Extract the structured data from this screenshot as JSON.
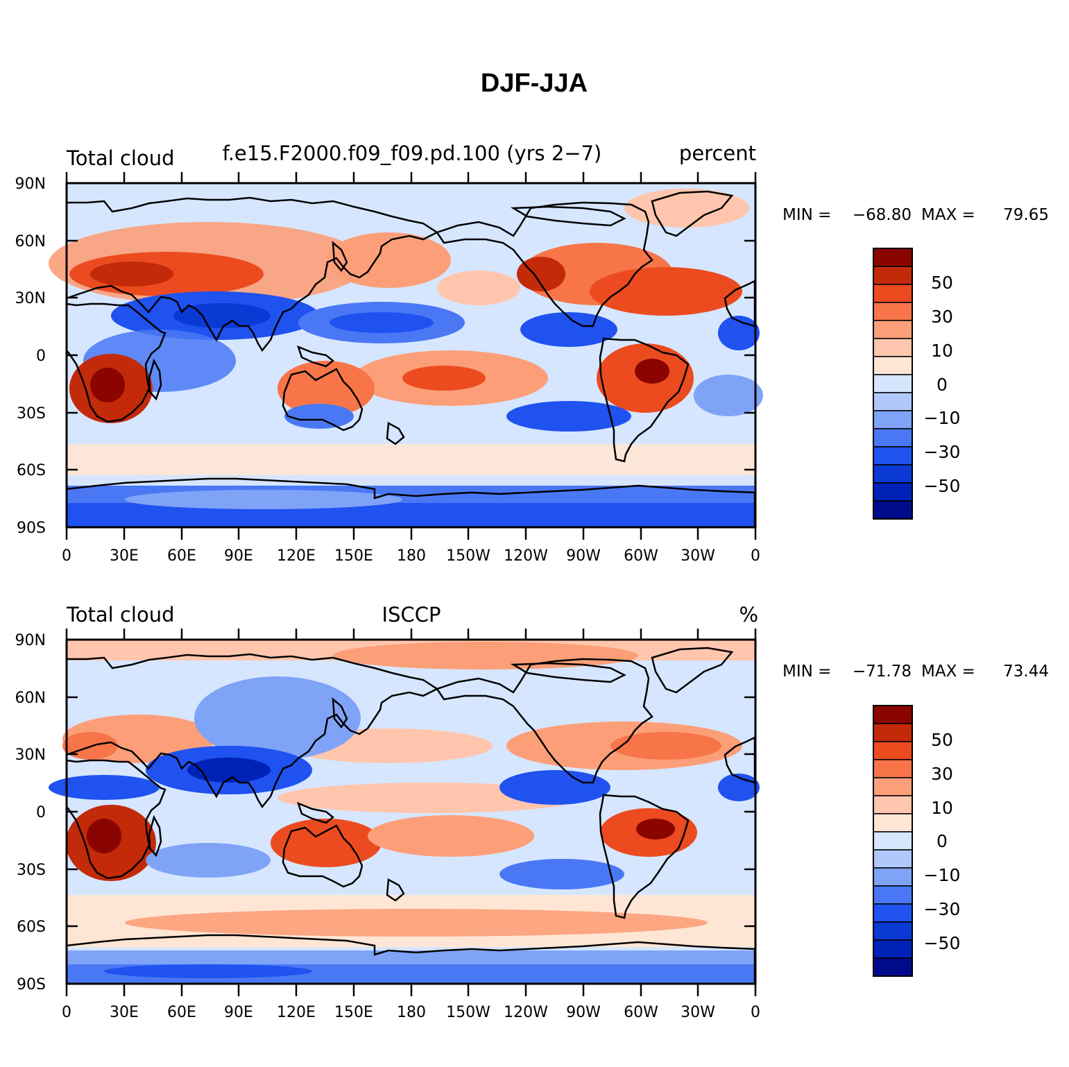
{
  "main_title": "DJF-JJA",
  "colors": {
    "levels_low_to_high": [
      "#000b8c",
      "#0022b6",
      "#0a39d4",
      "#1f52ef",
      "#4a78f5",
      "#7fa3f7",
      "#b0c8fb",
      "#d6e6ff",
      "#ffe6d4",
      "#ffc6ad",
      "#fc9f79",
      "#f77548",
      "#ec4b20",
      "#c22a09",
      "#8a0500"
    ],
    "land_outline": "#000000",
    "background": "#ffffff"
  },
  "panels": [
    {
      "left_label": "Total cloud",
      "center_label": "f.e15.F2000.f09_f09.pd.100 (yrs 2−7)",
      "right_label": "percent",
      "min_label": "MIN =",
      "min_value": "−68.80",
      "max_label": "MAX =",
      "max_value": "79.65"
    },
    {
      "left_label": "Total cloud",
      "center_label": "ISCCP",
      "right_label": "%",
      "min_label": "MIN =",
      "min_value": "−71.78",
      "max_label": "MAX =",
      "max_value": "73.44"
    }
  ],
  "lat_ticks": [
    "90N",
    "60N",
    "30N",
    "0",
    "30S",
    "60S",
    "90S"
  ],
  "lon_ticks": [
    "0",
    "30E",
    "60E",
    "90E",
    "120E",
    "150E",
    "180",
    "150W",
    "120W",
    "90W",
    "60W",
    "30W",
    "0"
  ],
  "colorbar_labels": [
    "50",
    "30",
    "10",
    "0",
    "−10",
    "−30",
    "−50"
  ],
  "chart_data": [
    {
      "type": "heatmap",
      "title": "DJF-JJA",
      "subtitle": "Total cloud — f.e15.F2000.f09_f09.pd.100 (yrs 2−7)",
      "units": "percent",
      "x_range": [
        0,
        360
      ],
      "y_range": [
        -90,
        90
      ],
      "min": -68.8,
      "max": 79.65,
      "contour_levels": [
        -70,
        -60,
        -50,
        -40,
        -30,
        -20,
        -10,
        -5,
        0,
        5,
        10,
        20,
        30,
        40,
        50,
        60
      ],
      "features": [
        {
          "lon": 100,
          "lat": 32,
          "value": -55
        },
        {
          "lon": 45,
          "lat": 45,
          "value": 60
        },
        {
          "lon": 300,
          "lat": -12,
          "value": 55
        },
        {
          "lon": 25,
          "lat": -18,
          "value": 60
        },
        {
          "lon": 160,
          "lat": 15,
          "value": -40
        },
        {
          "lon": 320,
          "lat": 35,
          "value": 45
        },
        {
          "lon": 270,
          "lat": 12,
          "value": -50
        },
        {
          "lon": 200,
          "lat": -15,
          "value": 40
        },
        {
          "lon": 180,
          "lat": -83,
          "value": -50
        }
      ]
    },
    {
      "type": "heatmap",
      "title": "DJF-JJA",
      "subtitle": "Total cloud — ISCCP",
      "units": "%",
      "x_range": [
        0,
        360
      ],
      "y_range": [
        -90,
        90
      ],
      "min": -71.78,
      "max": 73.44,
      "contour_levels": [
        -70,
        -60,
        -50,
        -40,
        -30,
        -20,
        -10,
        -5,
        0,
        5,
        10,
        20,
        30,
        40,
        50,
        60
      ],
      "features": [
        {
          "lon": 90,
          "lat": 25,
          "value": -60
        },
        {
          "lon": 30,
          "lat": -15,
          "value": 55
        },
        {
          "lon": 305,
          "lat": -12,
          "value": 55
        },
        {
          "lon": 130,
          "lat": -15,
          "value": 45
        },
        {
          "lon": 20,
          "lat": 40,
          "value": 30
        },
        {
          "lon": 340,
          "lat": 12,
          "value": -40
        },
        {
          "lon": 270,
          "lat": 12,
          "value": -45
        },
        {
          "lon": 180,
          "lat": -80,
          "value": -40
        }
      ]
    }
  ]
}
